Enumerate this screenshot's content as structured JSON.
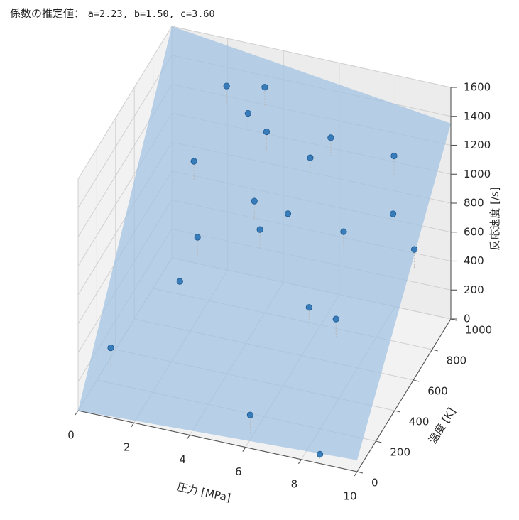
{
  "header": {
    "label": "係数の推定値：",
    "values": "a=2.23, b=1.50, c=3.60"
  },
  "chart_data": {
    "type": "scatter",
    "projection": "3d",
    "xlabel": "圧力 [MPa]",
    "ylabel": "温度 [K]",
    "zlabel": "反応速度 [/s]",
    "xticks": [
      "0",
      "2",
      "4",
      "6",
      "8",
      "10"
    ],
    "yticks": [
      "0",
      "200",
      "400",
      "600",
      "800",
      "1000"
    ],
    "zticks": [
      "0",
      "200",
      "400",
      "600",
      "800",
      "1000",
      "1200",
      "1400",
      "1600"
    ],
    "xlim": [
      0,
      10
    ],
    "ylim": [
      0,
      1000
    ],
    "zlim": [
      0,
      1600
    ],
    "grid": true,
    "fitted_plane": {
      "a": 2.23,
      "b": 1.5,
      "c": 3.6,
      "color": "#9ec1e2",
      "opacity": 0.7
    },
    "point_color": "#2a73b5",
    "points": [
      {
        "x": 0.6,
        "y": 170,
        "z": 280
      },
      {
        "x": 2.6,
        "y": 500,
        "z": 780
      },
      {
        "x": 4.2,
        "y": 630,
        "z": 960
      },
      {
        "x": 6.0,
        "y": 50,
        "z": 170
      },
      {
        "x": 2.3,
        "y": 900,
        "z": 1390
      },
      {
        "x": 4.0,
        "y": 820,
        "z": 1230
      },
      {
        "x": 1.8,
        "y": 700,
        "z": 1060
      },
      {
        "x": 7.5,
        "y": 600,
        "z": 920
      },
      {
        "x": 8.0,
        "y": 370,
        "z": 580
      },
      {
        "x": 8.6,
        "y": 20,
        "z": 40
      },
      {
        "x": 2.0,
        "y": 490,
        "z": 460
      },
      {
        "x": 3.0,
        "y": 920,
        "z": 1210
      },
      {
        "x": 3.5,
        "y": 950,
        "z": 1380
      },
      {
        "x": 4.2,
        "y": 690,
        "z": 700
      },
      {
        "x": 5.0,
        "y": 750,
        "z": 780
      },
      {
        "x": 5.8,
        "y": 750,
        "z": 1200
      },
      {
        "x": 6.7,
        "y": 470,
        "z": 500
      },
      {
        "x": 6.2,
        "y": 850,
        "z": 1250
      },
      {
        "x": 8.3,
        "y": 900,
        "z": 1160
      },
      {
        "x": 8.8,
        "y": 740,
        "z": 950
      },
      {
        "x": 9.8,
        "y": 670,
        "z": 820
      }
    ]
  }
}
